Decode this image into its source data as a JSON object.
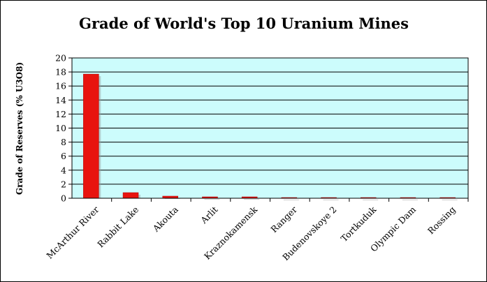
{
  "chart_data": {
    "type": "bar",
    "title": "Grade of World's Top 10 Uranium Mines",
    "xlabel": "",
    "ylabel": "Grade of Reserves (% U3O8)",
    "categories": [
      "McArthur River",
      "Rabbit Lake",
      "Akouta",
      "Arlit",
      "Kraznokamensk",
      "Ranger",
      "Budenovskoye 2",
      "Tortkuduk",
      "Olympic Dam",
      "Rossing"
    ],
    "values": [
      17.7,
      0.8,
      0.3,
      0.2,
      0.2,
      0.1,
      0.1,
      0.1,
      0.08,
      0.03
    ],
    "ylim": [
      0,
      20
    ],
    "yticks": [
      0,
      2,
      4,
      6,
      8,
      10,
      12,
      14,
      16,
      18,
      20
    ],
    "grid": "horizontal",
    "legend": "none",
    "colors": {
      "bar": "#e8140f",
      "bar_shadow": "#9a9a9a",
      "plot_background": "#ccfcfc",
      "gridline": "#000000"
    }
  }
}
